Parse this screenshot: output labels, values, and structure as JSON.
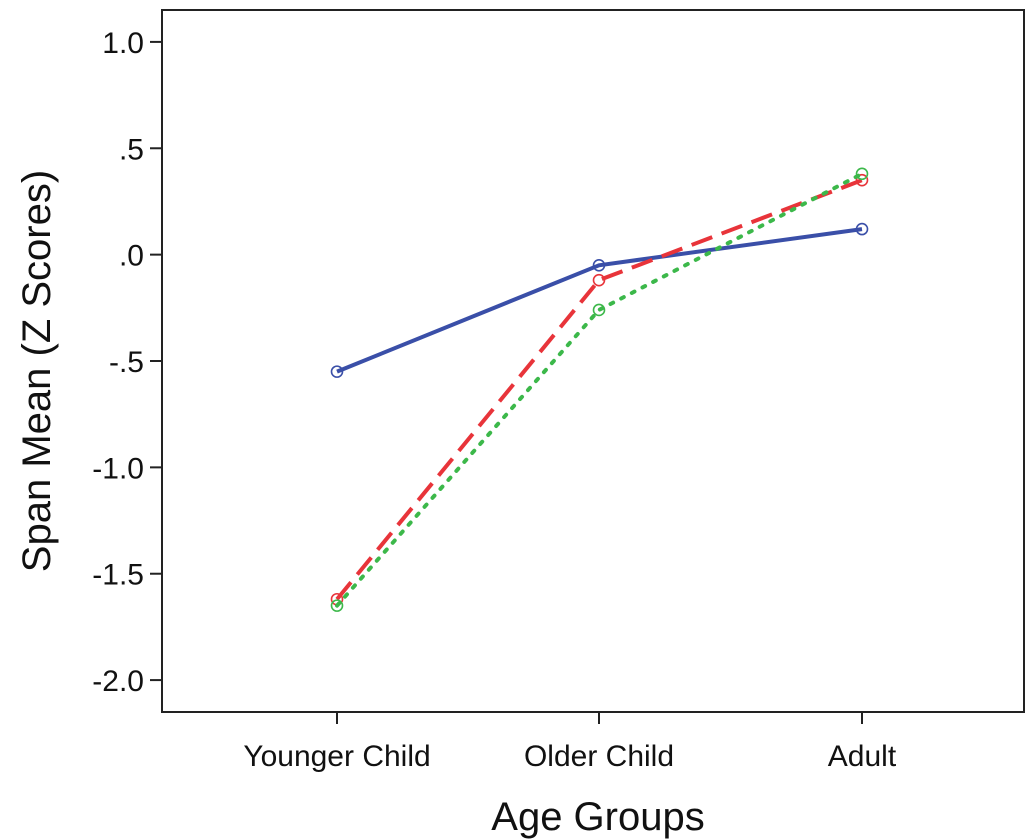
{
  "chart_data": {
    "type": "line",
    "title": "",
    "xlabel": "Age Groups",
    "ylabel": "Span Mean (Z Scores)",
    "categories": [
      "Younger Child",
      "Older Child",
      "Adult"
    ],
    "ylim": [
      -2.15,
      1.15
    ],
    "yticks": [
      1.0,
      0.5,
      0.0,
      -0.5,
      -1.0,
      -1.5,
      -2.0
    ],
    "ytick_labels": [
      "1.0",
      ".5",
      ".0",
      "-.5",
      "-1.0",
      "-1.5",
      "-2.0"
    ],
    "grid": false,
    "legend": "none",
    "series": [
      {
        "values": [
          -0.55,
          -0.05,
          0.12
        ],
        "color": "#3a4fa8",
        "style": "solid",
        "marker": "circle"
      },
      {
        "values": [
          -1.62,
          -0.12,
          0.35
        ],
        "color": "#e8343a",
        "style": "dashed",
        "marker": "circle"
      },
      {
        "values": [
          -1.65,
          -0.26,
          0.38
        ],
        "color": "#3cb84a",
        "style": "dotted",
        "marker": "circle"
      }
    ]
  }
}
